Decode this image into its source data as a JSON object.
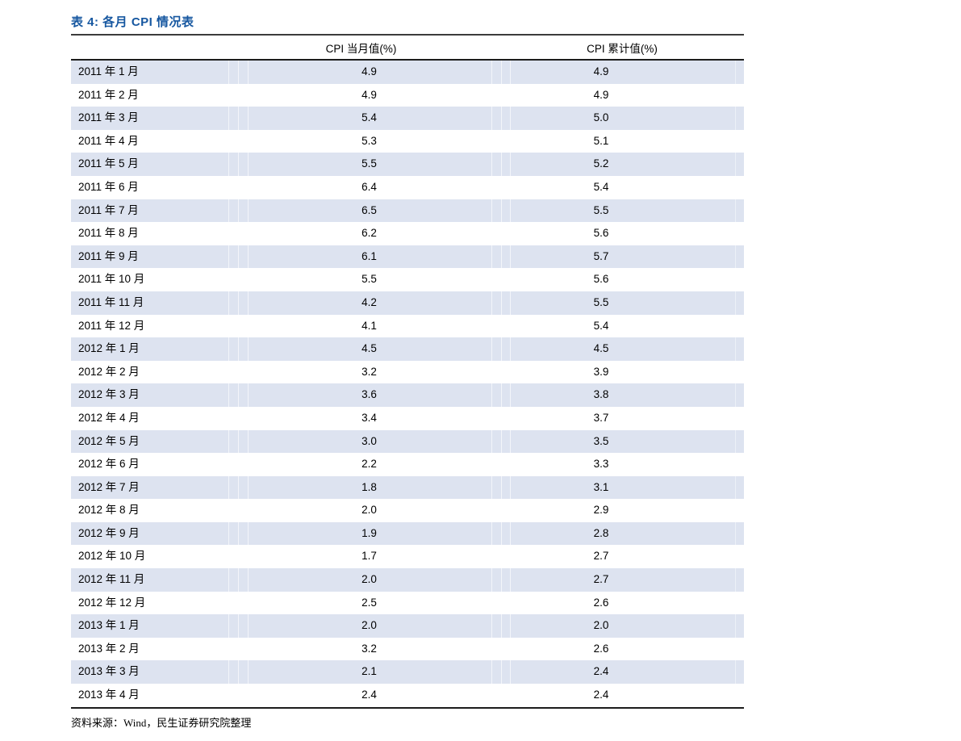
{
  "title": "表 4: 各月 CPI 情况表",
  "table": {
    "columns": [
      {
        "label": "CPI 当月值(%)"
      },
      {
        "label": "CPI 累计值(%)"
      }
    ],
    "rows": [
      {
        "month": "2011 年 1 月",
        "current": "4.9",
        "cumulative": "4.9"
      },
      {
        "month": "2011 年 2 月",
        "current": "4.9",
        "cumulative": "4.9"
      },
      {
        "month": "2011 年 3 月",
        "current": "5.4",
        "cumulative": "5.0"
      },
      {
        "month": "2011 年 4 月",
        "current": "5.3",
        "cumulative": "5.1"
      },
      {
        "month": "2011 年 5 月",
        "current": "5.5",
        "cumulative": "5.2"
      },
      {
        "month": "2011 年 6 月",
        "current": "6.4",
        "cumulative": "5.4"
      },
      {
        "month": "2011 年 7 月",
        "current": "6.5",
        "cumulative": "5.5"
      },
      {
        "month": "2011 年 8 月",
        "current": "6.2",
        "cumulative": "5.6"
      },
      {
        "month": "2011 年 9 月",
        "current": "6.1",
        "cumulative": "5.7"
      },
      {
        "month": "2011 年 10 月",
        "current": "5.5",
        "cumulative": "5.6"
      },
      {
        "month": "2011 年 11 月",
        "current": "4.2",
        "cumulative": "5.5"
      },
      {
        "month": "2011 年 12 月",
        "current": "4.1",
        "cumulative": "5.4"
      },
      {
        "month": "2012 年 1 月",
        "current": "4.5",
        "cumulative": "4.5"
      },
      {
        "month": "2012 年 2 月",
        "current": "3.2",
        "cumulative": "3.9"
      },
      {
        "month": "2012 年 3 月",
        "current": "3.6",
        "cumulative": "3.8"
      },
      {
        "month": "2012 年 4 月",
        "current": "3.4",
        "cumulative": "3.7"
      },
      {
        "month": "2012 年 5 月",
        "current": "3.0",
        "cumulative": "3.5"
      },
      {
        "month": "2012 年 6 月",
        "current": "2.2",
        "cumulative": "3.3"
      },
      {
        "month": "2012 年 7 月",
        "current": "1.8",
        "cumulative": "3.1"
      },
      {
        "month": "2012 年 8 月",
        "current": "2.0",
        "cumulative": "2.9"
      },
      {
        "month": "2012 年 9 月",
        "current": "1.9",
        "cumulative": "2.8"
      },
      {
        "month": "2012 年 10 月",
        "current": "1.7",
        "cumulative": "2.7"
      },
      {
        "month": "2012 年 11 月",
        "current": "2.0",
        "cumulative": "2.7"
      },
      {
        "month": "2012 年 12 月",
        "current": "2.5",
        "cumulative": "2.6"
      },
      {
        "month": "2013 年 1 月",
        "current": "2.0",
        "cumulative": "2.0"
      },
      {
        "month": "2013 年 2 月",
        "current": "3.2",
        "cumulative": "2.6"
      },
      {
        "month": "2013 年 3 月",
        "current": "2.1",
        "cumulative": "2.4"
      },
      {
        "month": "2013 年 4 月",
        "current": "2.4",
        "cumulative": "2.4"
      }
    ]
  },
  "footer": {
    "source": "资料来源：Wind，民生证券研究院整理"
  },
  "colors": {
    "title_blue": "#1657A0",
    "row_shade": "#DDE3F0",
    "rule_dark": "#1c1c1c"
  }
}
